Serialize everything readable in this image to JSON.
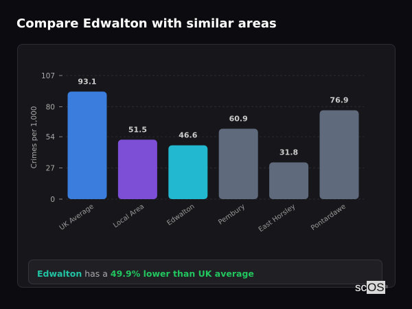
{
  "page_title": "Compare Edwalton with similar areas",
  "chart_data": {
    "type": "bar",
    "title": "",
    "xlabel": "",
    "ylabel": "Crimes per 1,000",
    "ylim": [
      0,
      107
    ],
    "yticks": [
      0,
      27,
      54,
      80,
      107
    ],
    "grid": true,
    "categories": [
      "UK Average",
      "Local Area",
      "Edwalton",
      "Pembury",
      "East Horsley",
      "Pontardawe"
    ],
    "values": [
      93.1,
      51.5,
      46.6,
      60.9,
      31.8,
      76.9
    ],
    "colors": [
      "#3b7ddd",
      "#7c4fd6",
      "#22b8cf",
      "#5f6b7d",
      "#5f6b7d",
      "#5f6b7d"
    ]
  },
  "summary": {
    "area": "Edwalton",
    "middle": " has a ",
    "comparison": "49.9% lower than UK average"
  },
  "logo": {
    "text_a": "sc",
    "text_b": "OS",
    "mark": "®"
  }
}
